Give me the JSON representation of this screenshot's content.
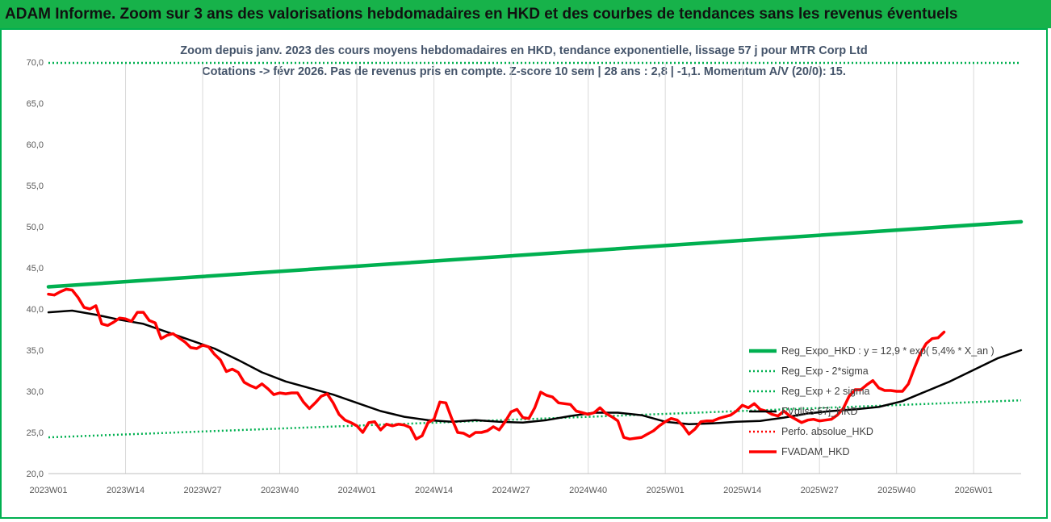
{
  "header": {
    "title": "ADAM Informe. Zoom sur 3 ans des valorisations hebdomadaires en HKD et des courbes de tendances sans les revenus éventuels"
  },
  "chart_data": {
    "type": "line",
    "title_line1": "Zoom depuis janv. 2023 des cours moyens hebdomadaires en HKD, tendance exponentielle, lissage 57 j pour MTR Corp Ltd",
    "title_line2": "Cotations -> févr 2026. Pas de revenus pris en compte. Z-score 10 sem | 28 ans : 2,8 | -1,1. Momentum A/V (20/0): 15.",
    "ylim": [
      20,
      70
    ],
    "yticks": [
      "20,0",
      "25,0",
      "30,0",
      "35,0",
      "40,0",
      "45,0",
      "50,0",
      "55,0",
      "60,0",
      "65,0",
      "70,0"
    ],
    "xticks": [
      {
        "week": 0,
        "label": "2023W01"
      },
      {
        "week": 13,
        "label": "2023W14"
      },
      {
        "week": 26,
        "label": "2023W27"
      },
      {
        "week": 39,
        "label": "2023W40"
      },
      {
        "week": 52,
        "label": "2024W01"
      },
      {
        "week": 65,
        "label": "2024W14"
      },
      {
        "week": 78,
        "label": "2024W27"
      },
      {
        "week": 91,
        "label": "2024W40"
      },
      {
        "week": 104,
        "label": "2025W01"
      },
      {
        "week": 117,
        "label": "2025W14"
      },
      {
        "week": 130,
        "label": "2025W27"
      },
      {
        "week": 143,
        "label": "2025W40"
      },
      {
        "week": 156,
        "label": "2026W01"
      }
    ],
    "grid": "vertical",
    "legend_position": "right",
    "series": [
      {
        "name": "Reg_Expo_HKD : y = 12,9 * exp( 5,4% *  X_an )",
        "color": "#00b050",
        "style": "solid-thick",
        "points": [
          [
            0,
            42.7
          ],
          [
            164,
            50.6
          ]
        ]
      },
      {
        "name": "Reg_Exp - 2*sigma",
        "color": "#00b050",
        "style": "dotted",
        "points": [
          [
            0,
            24.4
          ],
          [
            164,
            28.9
          ]
        ]
      },
      {
        "name": "Reg_Exp + 2 sigma",
        "color": "#00b050",
        "style": "dotted",
        "points": [
          [
            0,
            69.9
          ],
          [
            164,
            69.9
          ]
        ]
      },
      {
        "name": "FVgliss 57j_HKD",
        "color": "#000000",
        "style": "solid",
        "points": [
          [
            0,
            39.6
          ],
          [
            4,
            39.8
          ],
          [
            8,
            39.3
          ],
          [
            12,
            38.7
          ],
          [
            16,
            38.2
          ],
          [
            20,
            37.2
          ],
          [
            24,
            36.2
          ],
          [
            28,
            35.2
          ],
          [
            32,
            33.8
          ],
          [
            36,
            32.3
          ],
          [
            40,
            31.2
          ],
          [
            44,
            30.4
          ],
          [
            48,
            29.6
          ],
          [
            52,
            28.6
          ],
          [
            56,
            27.6
          ],
          [
            60,
            26.9
          ],
          [
            64,
            26.5
          ],
          [
            68,
            26.3
          ],
          [
            72,
            26.5
          ],
          [
            76,
            26.3
          ],
          [
            80,
            26.2
          ],
          [
            84,
            26.5
          ],
          [
            88,
            27.0
          ],
          [
            92,
            27.4
          ],
          [
            96,
            27.4
          ],
          [
            100,
            27.1
          ],
          [
            104,
            26.3
          ],
          [
            108,
            26.0
          ],
          [
            112,
            26.1
          ],
          [
            116,
            26.3
          ],
          [
            120,
            26.4
          ],
          [
            124,
            26.8
          ],
          [
            128,
            27.3
          ],
          [
            132,
            27.6
          ],
          [
            136,
            27.8
          ],
          [
            140,
            28.1
          ],
          [
            144,
            28.8
          ],
          [
            148,
            30.0
          ],
          [
            152,
            31.2
          ],
          [
            156,
            32.6
          ],
          [
            160,
            34.0
          ],
          [
            164,
            35.0
          ]
        ]
      },
      {
        "name": "Perfo. absolue_HKD",
        "color": "#ff0000",
        "style": "dotted",
        "points": []
      },
      {
        "name": "FVADAM_HKD",
        "color": "#ff0000",
        "style": "solid-thick",
        "points": [
          [
            0,
            41.8
          ],
          [
            1,
            41.7
          ],
          [
            2,
            42.1
          ],
          [
            3,
            42.4
          ],
          [
            4,
            42.3
          ],
          [
            5,
            41.4
          ],
          [
            6,
            40.2
          ],
          [
            7,
            40.0
          ],
          [
            8,
            40.4
          ],
          [
            9,
            38.2
          ],
          [
            10,
            38.0
          ],
          [
            11,
            38.4
          ],
          [
            12,
            38.9
          ],
          [
            13,
            38.8
          ],
          [
            14,
            38.5
          ],
          [
            15,
            39.6
          ],
          [
            16,
            39.6
          ],
          [
            17,
            38.6
          ],
          [
            18,
            38.3
          ],
          [
            19,
            36.4
          ],
          [
            20,
            36.8
          ],
          [
            21,
            37.0
          ],
          [
            22,
            36.5
          ],
          [
            23,
            36.0
          ],
          [
            24,
            35.3
          ],
          [
            25,
            35.2
          ],
          [
            26,
            35.6
          ],
          [
            27,
            35.4
          ],
          [
            28,
            34.5
          ],
          [
            29,
            33.8
          ],
          [
            30,
            32.4
          ],
          [
            31,
            32.7
          ],
          [
            32,
            32.3
          ],
          [
            33,
            31.1
          ],
          [
            34,
            30.7
          ],
          [
            35,
            30.4
          ],
          [
            36,
            30.9
          ],
          [
            37,
            30.3
          ],
          [
            38,
            29.6
          ],
          [
            39,
            29.8
          ],
          [
            40,
            29.7
          ],
          [
            41,
            29.8
          ],
          [
            42,
            29.8
          ],
          [
            43,
            28.7
          ],
          [
            44,
            27.9
          ],
          [
            45,
            28.6
          ],
          [
            46,
            29.4
          ],
          [
            47,
            29.7
          ],
          [
            48,
            28.6
          ],
          [
            49,
            27.2
          ],
          [
            50,
            26.5
          ],
          [
            51,
            26.2
          ],
          [
            52,
            25.8
          ],
          [
            53,
            25.0
          ],
          [
            54,
            26.2
          ],
          [
            55,
            26.3
          ],
          [
            56,
            25.3
          ],
          [
            57,
            26.0
          ],
          [
            58,
            25.8
          ],
          [
            59,
            26.0
          ],
          [
            60,
            25.9
          ],
          [
            61,
            25.6
          ],
          [
            62,
            24.2
          ],
          [
            63,
            24.6
          ],
          [
            64,
            26.2
          ],
          [
            65,
            26.6
          ],
          [
            66,
            28.7
          ],
          [
            67,
            28.6
          ],
          [
            68,
            26.7
          ],
          [
            69,
            25.0
          ],
          [
            70,
            24.9
          ],
          [
            71,
            24.5
          ],
          [
            72,
            25.0
          ],
          [
            73,
            25.0
          ],
          [
            74,
            25.2
          ],
          [
            75,
            25.7
          ],
          [
            76,
            25.3
          ],
          [
            77,
            26.3
          ],
          [
            78,
            27.5
          ],
          [
            79,
            27.8
          ],
          [
            80,
            26.8
          ],
          [
            81,
            26.7
          ],
          [
            82,
            28.0
          ],
          [
            83,
            29.9
          ],
          [
            84,
            29.5
          ],
          [
            85,
            29.3
          ],
          [
            86,
            28.6
          ],
          [
            87,
            28.5
          ],
          [
            88,
            28.4
          ],
          [
            89,
            27.6
          ],
          [
            90,
            27.4
          ],
          [
            91,
            27.2
          ],
          [
            92,
            27.4
          ],
          [
            93,
            28.0
          ],
          [
            94,
            27.3
          ],
          [
            95,
            26.9
          ],
          [
            96,
            26.4
          ],
          [
            97,
            24.4
          ],
          [
            98,
            24.2
          ],
          [
            99,
            24.3
          ],
          [
            100,
            24.4
          ],
          [
            101,
            24.8
          ],
          [
            102,
            25.2
          ],
          [
            103,
            25.8
          ],
          [
            104,
            26.3
          ],
          [
            105,
            26.7
          ],
          [
            106,
            26.5
          ],
          [
            107,
            25.8
          ],
          [
            108,
            24.8
          ],
          [
            109,
            25.4
          ],
          [
            110,
            26.3
          ],
          [
            111,
            26.4
          ],
          [
            112,
            26.4
          ],
          [
            113,
            26.7
          ],
          [
            114,
            26.9
          ],
          [
            115,
            27.1
          ],
          [
            116,
            27.6
          ],
          [
            117,
            28.3
          ],
          [
            118,
            28.0
          ],
          [
            119,
            28.5
          ],
          [
            120,
            27.8
          ],
          [
            121,
            27.6
          ],
          [
            122,
            27.2
          ],
          [
            123,
            27.0
          ],
          [
            124,
            27.6
          ],
          [
            125,
            27.0
          ],
          [
            126,
            26.6
          ],
          [
            127,
            26.2
          ],
          [
            128,
            26.5
          ],
          [
            129,
            26.6
          ],
          [
            130,
            26.4
          ],
          [
            131,
            26.5
          ],
          [
            132,
            26.6
          ],
          [
            133,
            27.1
          ],
          [
            134,
            27.9
          ],
          [
            135,
            29.4
          ],
          [
            136,
            30.2
          ],
          [
            137,
            30.2
          ],
          [
            138,
            30.8
          ],
          [
            139,
            31.3
          ],
          [
            140,
            30.4
          ],
          [
            141,
            30.1
          ],
          [
            142,
            30.1
          ],
          [
            143,
            30.0
          ],
          [
            144,
            30.0
          ],
          [
            145,
            30.9
          ],
          [
            146,
            32.8
          ],
          [
            147,
            34.6
          ],
          [
            148,
            35.8
          ],
          [
            149,
            36.4
          ],
          [
            150,
            36.5
          ],
          [
            151,
            37.2
          ]
        ]
      }
    ]
  }
}
